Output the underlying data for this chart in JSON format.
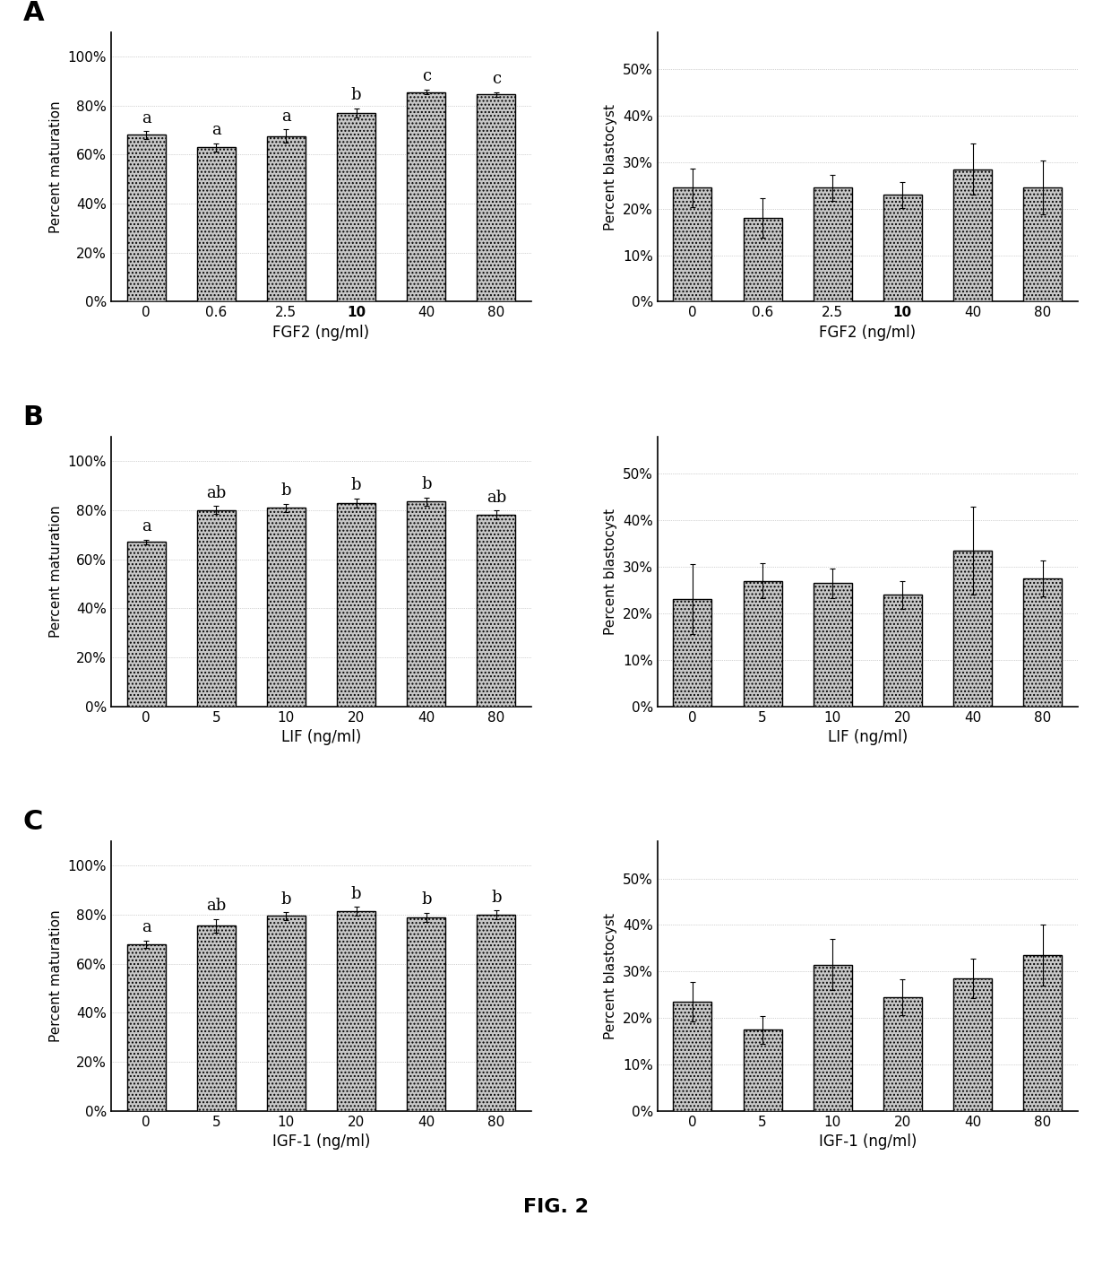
{
  "panels": [
    {
      "label": "A",
      "left": {
        "values": [
          0.68,
          0.63,
          0.675,
          0.77,
          0.855,
          0.845
        ],
        "errors": [
          0.016,
          0.016,
          0.028,
          0.018,
          0.01,
          0.01
        ],
        "xlabel": "FGF2 (ng/ml)",
        "ylabel": "Percent maturation",
        "xticks": [
          "0",
          "0.6",
          "2.5",
          "10",
          "40",
          "80"
        ],
        "yticks": [
          0.0,
          0.2,
          0.4,
          0.6,
          0.8,
          1.0
        ],
        "yticklabels": [
          "0%",
          "20%",
          "40%",
          "60%",
          "80%",
          "100%"
        ],
        "ylim": [
          0,
          1.1
        ],
        "sig_labels": [
          "a",
          "a",
          "a",
          "b",
          "c",
          "c"
        ],
        "bold_xtick": "10"
      },
      "right": {
        "values": [
          0.245,
          0.18,
          0.245,
          0.23,
          0.285,
          0.245
        ],
        "errors": [
          0.042,
          0.042,
          0.028,
          0.028,
          0.055,
          0.058
        ],
        "xlabel": "FGF2 (ng/ml)",
        "ylabel": "Percent blastocyst",
        "xticks": [
          "0",
          "0.6",
          "2.5",
          "10",
          "40",
          "80"
        ],
        "yticks": [
          0.0,
          0.1,
          0.2,
          0.3,
          0.4,
          0.5
        ],
        "yticklabels": [
          "0%",
          "10%",
          "20%",
          "30%",
          "40%",
          "50%"
        ],
        "ylim": [
          0,
          0.58
        ],
        "sig_labels": [
          "",
          "",
          "",
          "",
          "",
          ""
        ],
        "bold_xtick": "10"
      }
    },
    {
      "label": "B",
      "left": {
        "values": [
          0.67,
          0.8,
          0.81,
          0.83,
          0.835,
          0.78
        ],
        "errors": [
          0.01,
          0.016,
          0.016,
          0.018,
          0.016,
          0.018
        ],
        "xlabel": "LIF (ng/ml)",
        "ylabel": "Percent maturation",
        "xticks": [
          "0",
          "5",
          "10",
          "20",
          "40",
          "80"
        ],
        "yticks": [
          0.0,
          0.2,
          0.4,
          0.6,
          0.8,
          1.0
        ],
        "yticklabels": [
          "0%",
          "20%",
          "40%",
          "60%",
          "80%",
          "100%"
        ],
        "ylim": [
          0,
          1.1
        ],
        "sig_labels": [
          "a",
          "ab",
          "b",
          "b",
          "b",
          "ab"
        ],
        "bold_xtick": ""
      },
      "right": {
        "values": [
          0.23,
          0.27,
          0.265,
          0.24,
          0.335,
          0.275
        ],
        "errors": [
          0.075,
          0.038,
          0.032,
          0.03,
          0.095,
          0.038
        ],
        "xlabel": "LIF (ng/ml)",
        "ylabel": "Percent blastocyst",
        "xticks": [
          "0",
          "5",
          "10",
          "20",
          "40",
          "80"
        ],
        "yticks": [
          0.0,
          0.1,
          0.2,
          0.3,
          0.4,
          0.5
        ],
        "yticklabels": [
          "0%",
          "10%",
          "20%",
          "30%",
          "40%",
          "50%"
        ],
        "ylim": [
          0,
          0.58
        ],
        "sig_labels": [
          "",
          "",
          "",
          "",
          "",
          ""
        ],
        "bold_xtick": ""
      }
    },
    {
      "label": "C",
      "left": {
        "values": [
          0.68,
          0.755,
          0.795,
          0.815,
          0.79,
          0.8
        ],
        "errors": [
          0.016,
          0.028,
          0.016,
          0.018,
          0.018,
          0.018
        ],
        "xlabel": "IGF-1 (ng/ml)",
        "ylabel": "Percent maturation",
        "xticks": [
          "0",
          "5",
          "10",
          "20",
          "40",
          "80"
        ],
        "yticks": [
          0.0,
          0.2,
          0.4,
          0.6,
          0.8,
          1.0
        ],
        "yticklabels": [
          "0%",
          "20%",
          "40%",
          "60%",
          "80%",
          "100%"
        ],
        "ylim": [
          0,
          1.1
        ],
        "sig_labels": [
          "a",
          "ab",
          "b",
          "b",
          "b",
          "b"
        ],
        "bold_xtick": ""
      },
      "right": {
        "values": [
          0.235,
          0.175,
          0.315,
          0.245,
          0.285,
          0.335
        ],
        "errors": [
          0.042,
          0.03,
          0.055,
          0.038,
          0.042,
          0.065
        ],
        "xlabel": "IGF-1 (ng/ml)",
        "ylabel": "Percent blastocyst",
        "xticks": [
          "0",
          "5",
          "10",
          "20",
          "40",
          "80"
        ],
        "yticks": [
          0.0,
          0.1,
          0.2,
          0.3,
          0.4,
          0.5
        ],
        "yticklabels": [
          "0%",
          "10%",
          "20%",
          "30%",
          "40%",
          "50%"
        ],
        "ylim": [
          0,
          0.58
        ],
        "sig_labels": [
          "",
          "",
          "",
          "",
          "",
          ""
        ],
        "bold_xtick": ""
      }
    }
  ],
  "bar_color": "#c8c8c8",
  "bar_edgecolor": "#000000",
  "bar_linewidth": 1.0,
  "bar_hatch": "....",
  "error_capsize": 2.5,
  "error_linewidth": 0.8,
  "error_color": "#000000",
  "grid_color": "#aaaaaa",
  "grid_linestyle": ":",
  "grid_linewidth": 0.5,
  "fig_label_fontsize": 22,
  "axis_ylabel_fontsize": 11,
  "axis_xlabel_fontsize": 12,
  "tick_fontsize": 11,
  "sig_fontsize": 13,
  "fig_caption": "FIG. 2",
  "fig_caption_fontsize": 16,
  "background_color": "#ffffff"
}
